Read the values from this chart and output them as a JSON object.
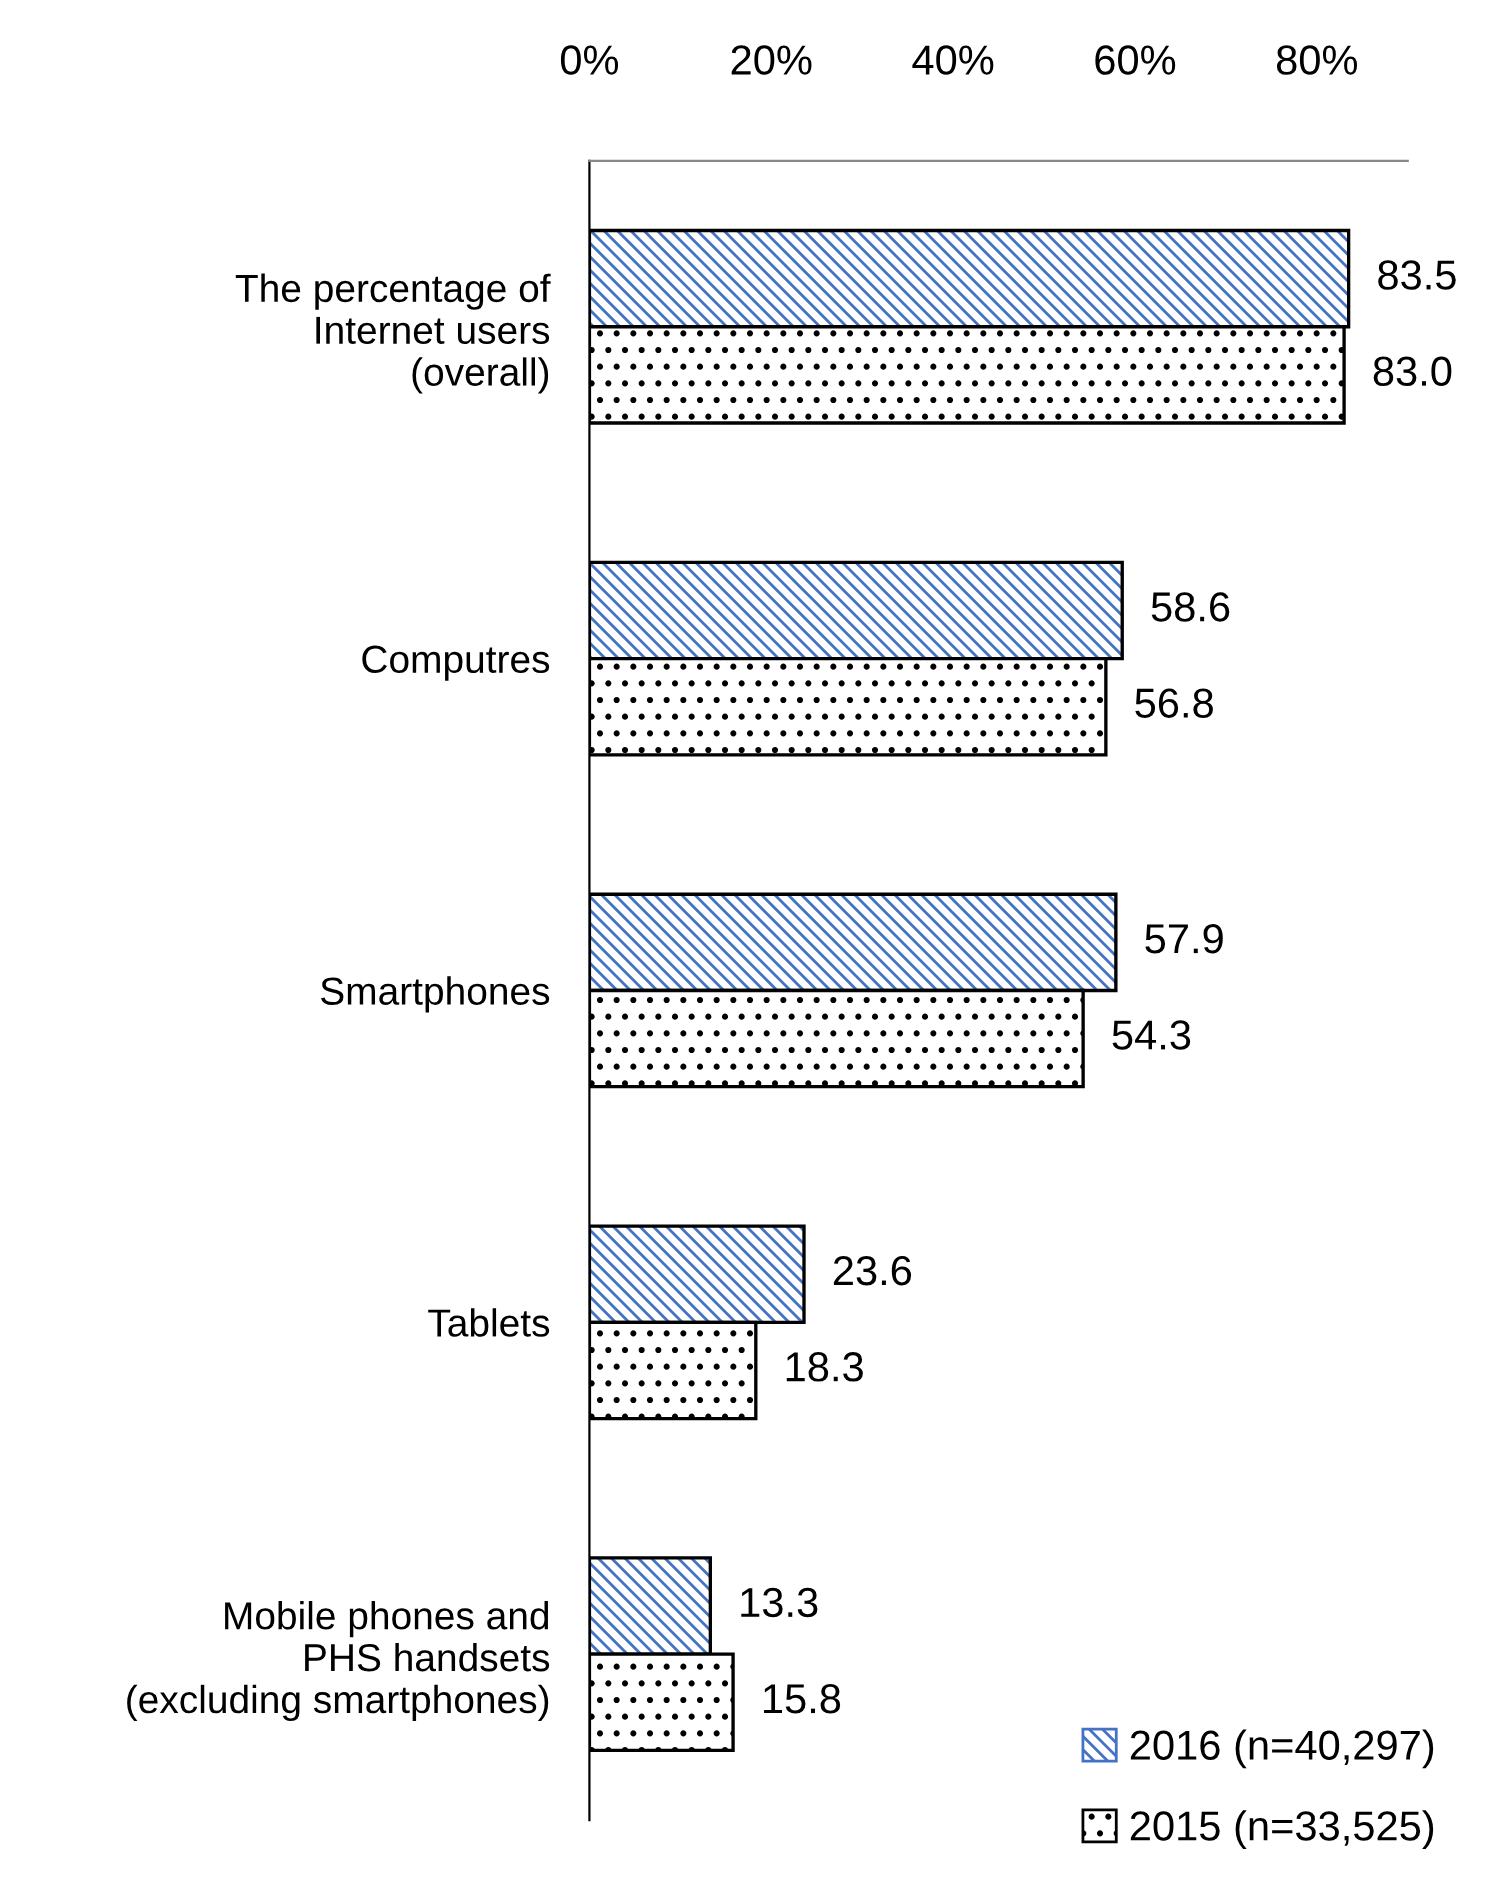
{
  "chart_data": {
    "type": "bar",
    "orientation": "horizontal",
    "categories": [
      "The percentage of\nInternet users\n(overall)",
      "Computres",
      "Smartphones",
      "Tablets",
      "Mobile phones and\nPHS handsets\n(excluding smartphones)"
    ],
    "series": [
      {
        "name": "2016 (n=40,297)",
        "color": "#4472c4",
        "values": [
          83.5,
          58.6,
          57.9,
          23.6,
          13.3
        ],
        "value_labels": [
          "83.5",
          "58.6",
          "57.9",
          "23.6",
          "13.3"
        ]
      },
      {
        "name": "2015 (n=33,525)",
        "color": "#000000",
        "values": [
          83.0,
          56.8,
          54.3,
          18.3,
          15.8
        ],
        "value_labels": [
          "83.0",
          "56.8",
          "54.3",
          "18.3",
          "15.8"
        ]
      }
    ],
    "xlim": [
      0,
      90
    ],
    "xticks": [
      {
        "value": 0,
        "label": "0%"
      },
      {
        "value": 20,
        "label": "20%"
      },
      {
        "value": 40,
        "label": "40%"
      },
      {
        "value": 60,
        "label": "60%"
      },
      {
        "value": 80,
        "label": "80%"
      }
    ],
    "grid": false,
    "legend": "bottom right"
  }
}
